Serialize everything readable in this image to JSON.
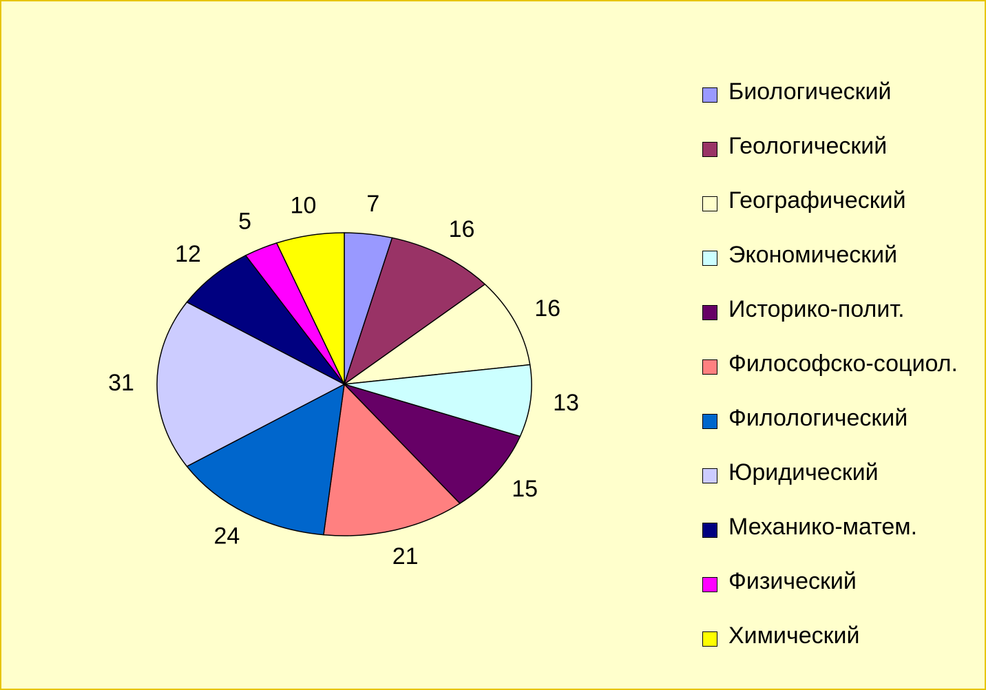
{
  "chart_data": {
    "type": "pie",
    "categories": [
      "Биологический",
      "Геологический",
      "Географический",
      "Экономический",
      "Историко-полит.",
      "Философско-социол.",
      "Филологический",
      "Юридический",
      "Механико-матем.",
      "Физический",
      "Химический"
    ],
    "values": [
      7,
      16,
      16,
      13,
      15,
      21,
      24,
      31,
      12,
      5,
      10
    ],
    "colors": [
      "#9999ff",
      "#993366",
      "#ffffcc",
      "#ccffff",
      "#660066",
      "#ff8080",
      "#0066cc",
      "#ccccff",
      "#000080",
      "#ff00ff",
      "#ffff00"
    ],
    "legend": "right"
  }
}
